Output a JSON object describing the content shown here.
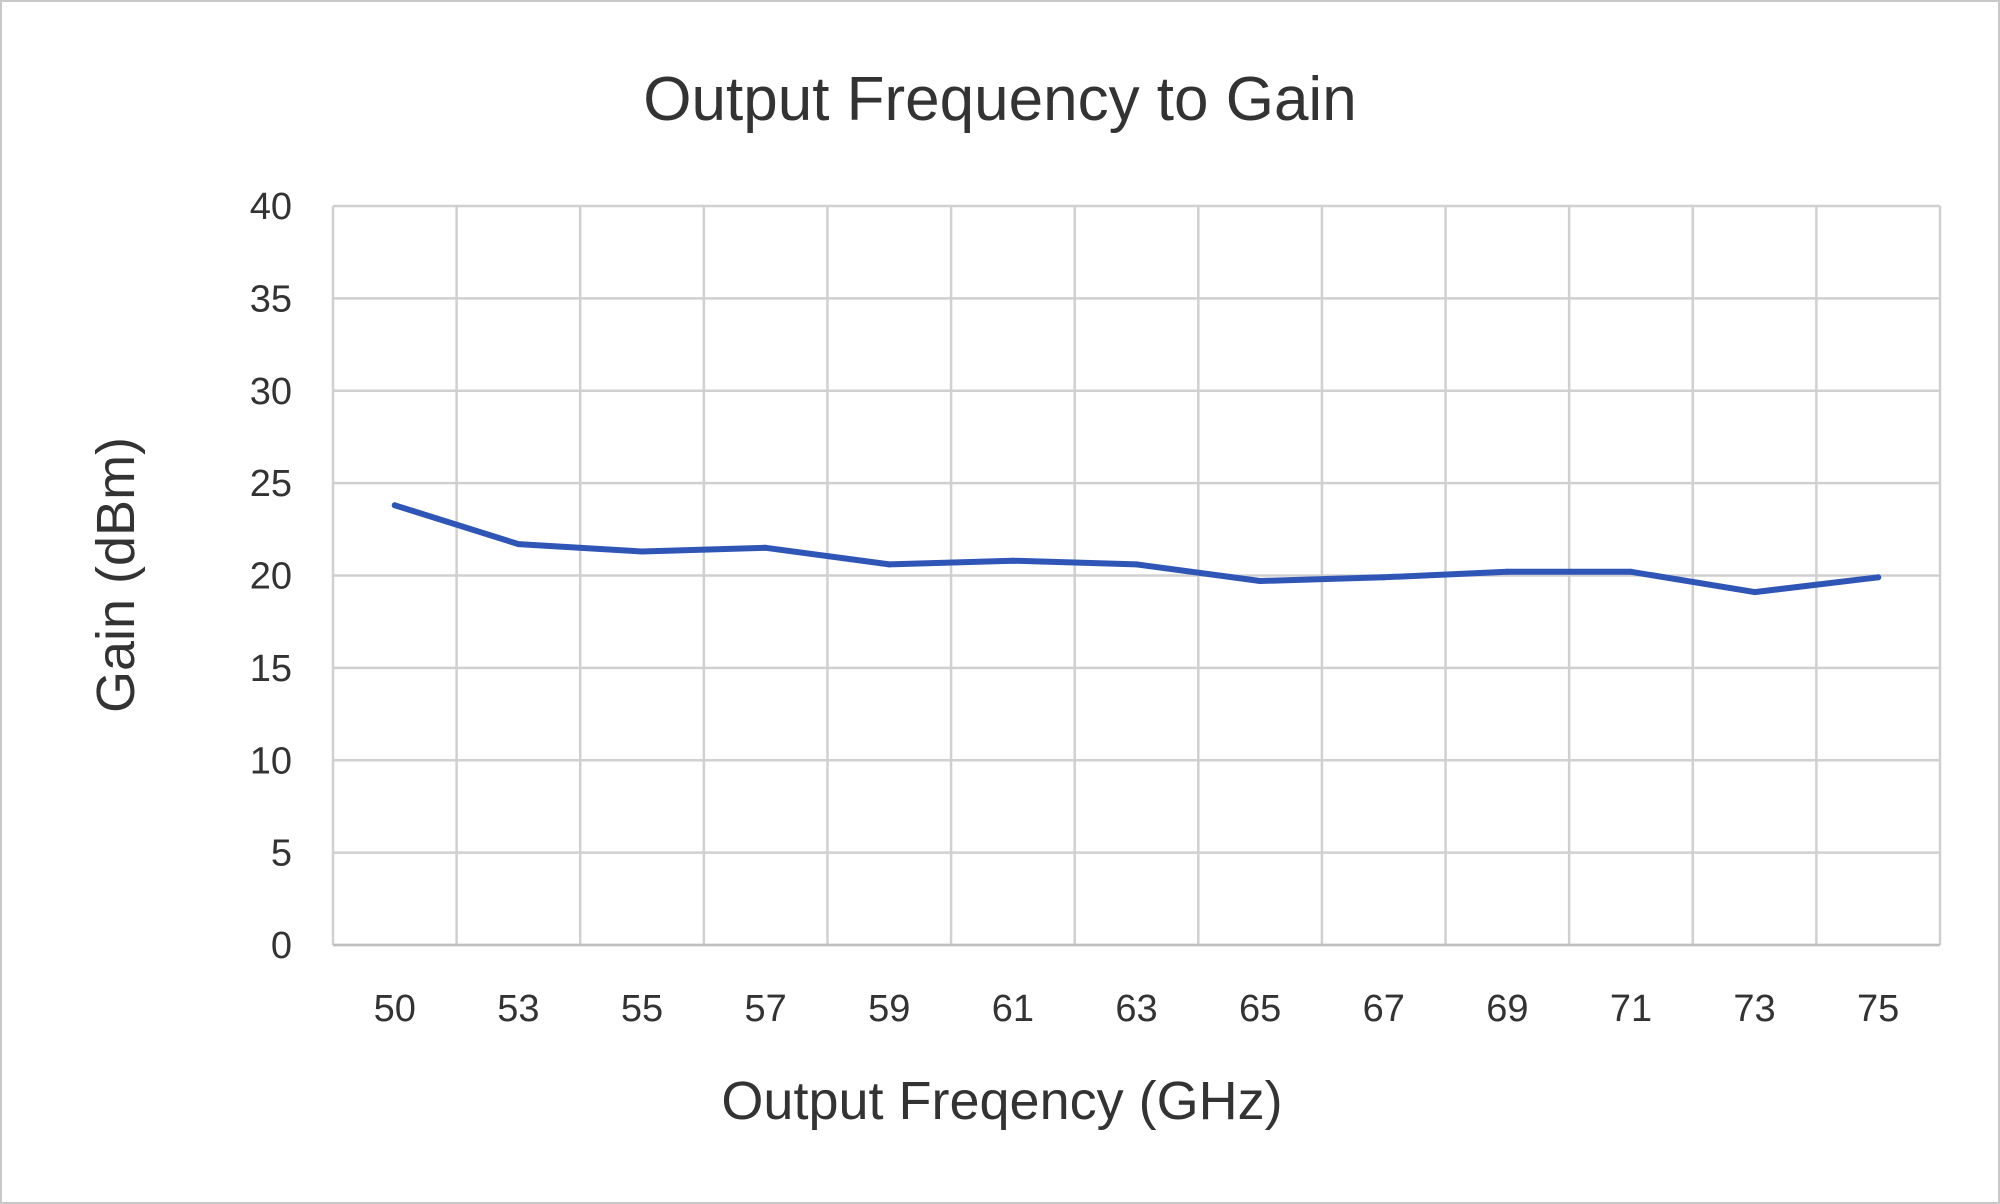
{
  "chart_data": {
    "type": "line",
    "title": "Output Frequency to Gain",
    "xlabel": "Output Freqency (GHz)",
    "ylabel": "Gain (dBm)",
    "categories": [
      "50",
      "53",
      "55",
      "57",
      "59",
      "61",
      "63",
      "65",
      "67",
      "69",
      "71",
      "73",
      "75"
    ],
    "series": [
      {
        "values": [
          23.8,
          21.7,
          21.3,
          21.5,
          20.6,
          20.8,
          20.6,
          19.7,
          19.9,
          20.2,
          20.2,
          19.1,
          19.9
        ]
      }
    ],
    "yticks": [
      "0",
      "5",
      "10",
      "15",
      "20",
      "25",
      "30",
      "35",
      "40"
    ],
    "ylim": [
      0,
      40
    ],
    "grid": true,
    "legend": "none",
    "colors": {
      "line": "#2f55b7",
      "grid": "#d0d0d0",
      "text": "#333333"
    }
  }
}
